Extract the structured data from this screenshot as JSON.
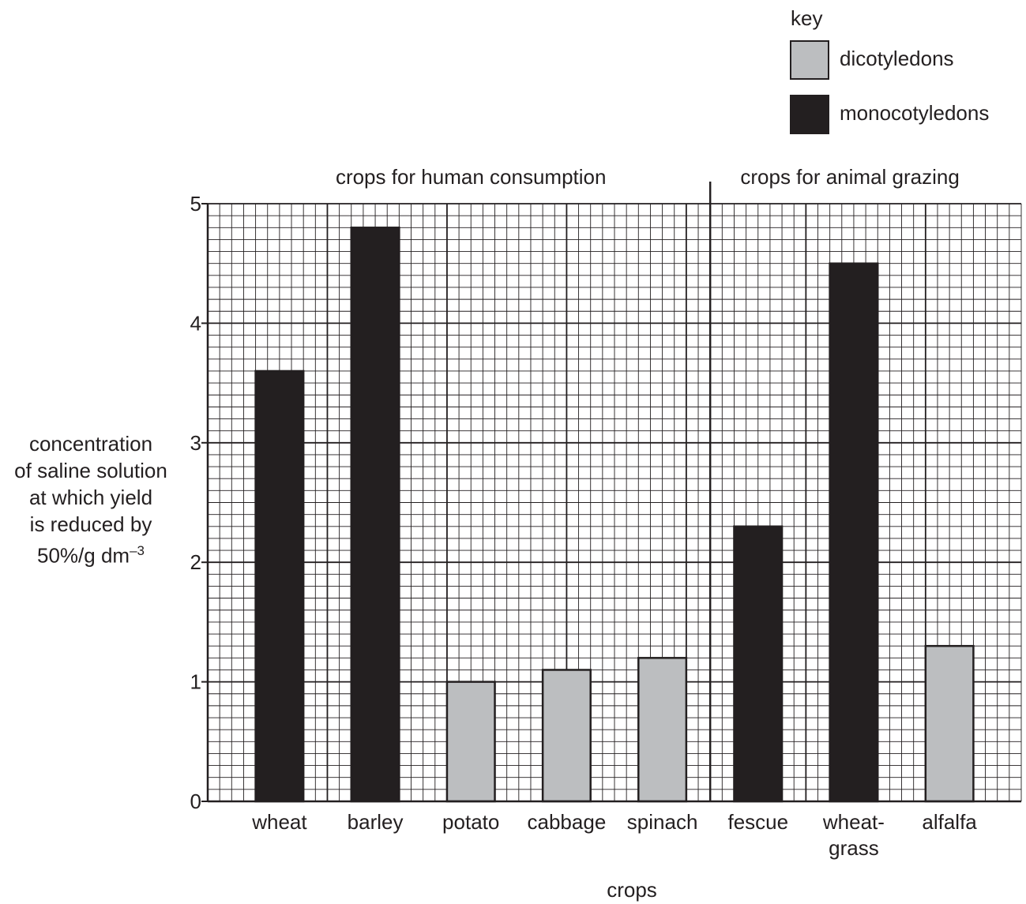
{
  "colors": {
    "dicotyledons": "#bcbec0",
    "monocotyledons": "#231f20",
    "grid": "#231f20"
  },
  "key": {
    "title": "key",
    "items": [
      {
        "label": "dicotyledons",
        "group": "dicotyledons"
      },
      {
        "label": "monocotyledons",
        "group": "monocotyledons"
      }
    ]
  },
  "chart_data": {
    "type": "bar",
    "title": "",
    "xlabel": "crops",
    "ylabel_lines": [
      "concentration",
      "of saline solution",
      "at which yield",
      "is reduced by",
      "50%/g dm"
    ],
    "ylabel_superscript": "–3",
    "ylim": [
      0,
      5
    ],
    "yticks": [
      "0",
      "1",
      "2",
      "3",
      "4",
      "5"
    ],
    "grid": true,
    "sections": [
      {
        "label": "crops for human consumption",
        "categories": [
          "wheat",
          "barley",
          "potato",
          "cabbage",
          "spinach"
        ]
      },
      {
        "label": "crops for animal grazing",
        "categories": [
          "fescue",
          "wheatgrass",
          "alfalfa"
        ]
      }
    ],
    "categories": [
      "wheat",
      "barley",
      "potato",
      "cabbage",
      "spinach",
      "fescue",
      "wheatgrass",
      "alfalfa"
    ],
    "category_labels": [
      [
        "wheat"
      ],
      [
        "barley"
      ],
      [
        "potato"
      ],
      [
        "cabbage"
      ],
      [
        "spinach"
      ],
      [
        "fescue"
      ],
      [
        "wheat-",
        "grass"
      ],
      [
        "alfalfa"
      ]
    ],
    "values": [
      3.6,
      4.8,
      1.0,
      1.1,
      1.2,
      2.3,
      4.5,
      1.3
    ],
    "groups": [
      "monocotyledons",
      "monocotyledons",
      "dicotyledons",
      "dicotyledons",
      "dicotyledons",
      "monocotyledons",
      "monocotyledons",
      "dicotyledons"
    ]
  }
}
